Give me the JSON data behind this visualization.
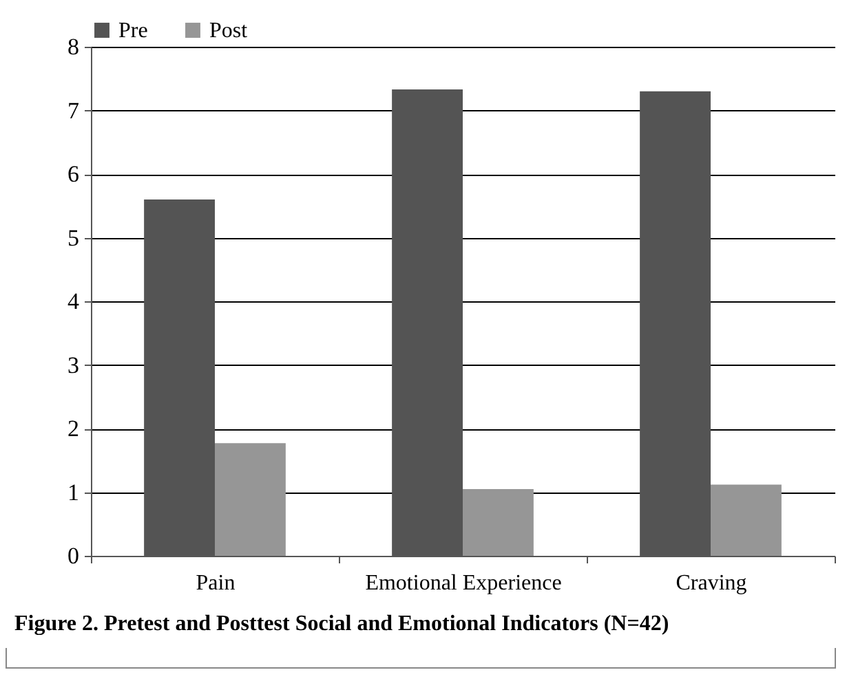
{
  "chart_data": {
    "type": "bar",
    "title": "Figure 2. Pretest and Posttest Social and Emotional Indicators (N=42)",
    "categories": [
      "Pain",
      "Emotional Experience",
      "Craving"
    ],
    "series": [
      {
        "name": "Pre",
        "color": "#545454",
        "values": [
          5.6,
          7.33,
          7.3
        ]
      },
      {
        "name": "Post",
        "color": "#969696",
        "values": [
          1.77,
          1.05,
          1.12
        ]
      }
    ],
    "ylim": [
      0,
      8
    ],
    "yticks": [
      0,
      1,
      2,
      3,
      4,
      5,
      6,
      7,
      8
    ],
    "grid": "y",
    "legend": "top"
  }
}
